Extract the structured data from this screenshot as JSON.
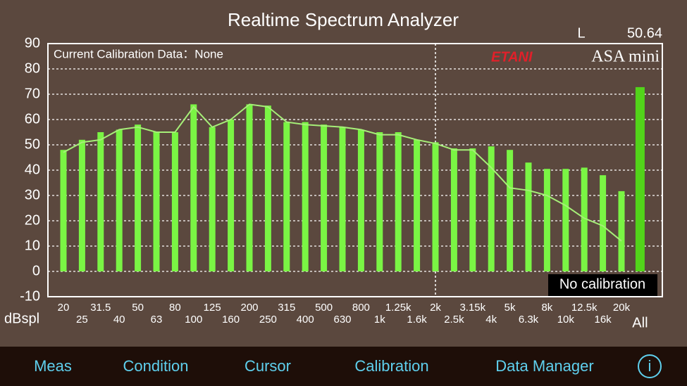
{
  "header": {
    "title": "Realtime Spectrum Analyzer",
    "channel": "L",
    "level": "50.64"
  },
  "chart_data": {
    "type": "bar",
    "y_label": "dBspl",
    "categories": [
      "20",
      "25",
      "31.5",
      "40",
      "50",
      "63",
      "80",
      "100",
      "125",
      "160",
      "200",
      "250",
      "315",
      "400",
      "500",
      "630",
      "800",
      "1k",
      "1.25k",
      "1.6k",
      "2k",
      "2.5k",
      "3.15k",
      "4k",
      "5k",
      "6.3k",
      "8k",
      "10k",
      "12.5k",
      "16k",
      "20k",
      "All"
    ],
    "series": [
      {
        "type": "bar",
        "color": "#7af544",
        "values": [
          48,
          52,
          55,
          56,
          58,
          55,
          55,
          66,
          57,
          60,
          66,
          65.5,
          59,
          59,
          58,
          57,
          56,
          55,
          55,
          52,
          51,
          48.6,
          48.6,
          49.4,
          48,
          43,
          40.5,
          40.5,
          41,
          38,
          31.7,
          null
        ]
      },
      {
        "type": "bar",
        "color": "#52d41a",
        "values": [
          null,
          null,
          null,
          null,
          null,
          null,
          null,
          null,
          null,
          null,
          null,
          null,
          null,
          null,
          null,
          null,
          null,
          null,
          null,
          null,
          null,
          null,
          null,
          null,
          null,
          null,
          null,
          null,
          null,
          null,
          null,
          72.8
        ]
      },
      {
        "type": "line",
        "color": "#a6ef78",
        "values": [
          47,
          51,
          52,
          56,
          57,
          55,
          55,
          65,
          57,
          60,
          66,
          65,
          59,
          58,
          57.5,
          57,
          56,
          54,
          54,
          52,
          50.5,
          48,
          48,
          41,
          33,
          32,
          30,
          26,
          21,
          18,
          12,
          null
        ]
      }
    ],
    "ylim": [
      -10,
      90
    ],
    "yticks": [
      -10,
      0,
      10,
      20,
      30,
      40,
      50,
      60,
      70,
      80,
      90
    ],
    "grid": true,
    "cursor_at": "2k",
    "annotations": {
      "calibration_data": "Current Calibration Data：None",
      "calibration_status": "No calibration",
      "brand": "ETANI",
      "product": "ASA mini"
    }
  },
  "toolbar": {
    "items": [
      "Meas",
      "Condition",
      "Cursor",
      "Calibration",
      "Data Manager"
    ],
    "info": "i"
  }
}
